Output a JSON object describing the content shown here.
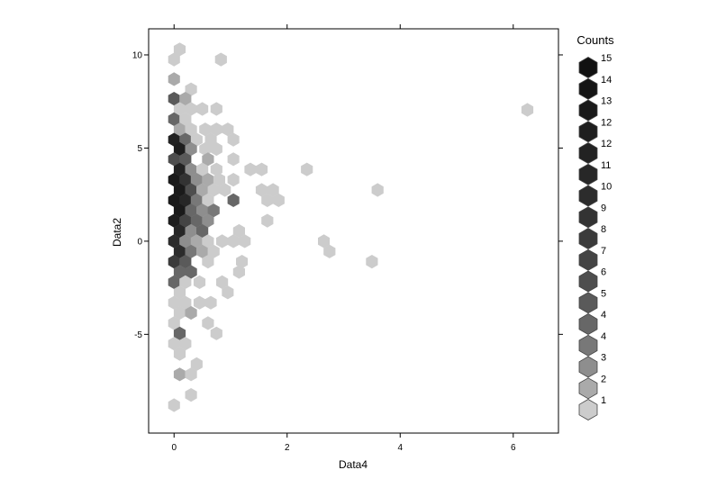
{
  "chart_data": {
    "type": "hexbin",
    "xlabel": "Data4",
    "ylabel": "Data2",
    "xlim": [
      -0.45,
      6.8
    ],
    "ylim": [
      -10.3,
      11.4
    ],
    "xticks": [
      0,
      2,
      4,
      6
    ],
    "yticks": [
      -5,
      0,
      5,
      10
    ],
    "legend": {
      "title": "Counts",
      "position": "right",
      "labels": [
        "15",
        "14",
        "13",
        "12",
        "12",
        "11",
        "10",
        "9",
        "8",
        "7",
        "6",
        "5",
        "4",
        "4",
        "3",
        "2",
        "1"
      ],
      "colors": [
        "#111111",
        "#151515",
        "#1a1a1a",
        "#1e1e1e",
        "#222222",
        "#272727",
        "#2c2c2c",
        "#333333",
        "#3b3b3b",
        "#444444",
        "#4e4e4e",
        "#5a5a5a",
        "#676767",
        "#787878",
        "#8e8e8e",
        "#aaaaaa",
        "#cccccc"
      ]
    },
    "hex_cells": [
      {
        "x": 0.1,
        "y": 10.3,
        "count": 1
      },
      {
        "x": 0.0,
        "y": 9.75,
        "count": 1
      },
      {
        "x": 0.83,
        "y": 9.75,
        "count": 1
      },
      {
        "x": 0.0,
        "y": 8.7,
        "count": 2
      },
      {
        "x": 0.3,
        "y": 8.15,
        "count": 1
      },
      {
        "x": 0.0,
        "y": 7.65,
        "count": 6
      },
      {
        "x": 0.2,
        "y": 7.65,
        "count": 2
      },
      {
        "x": 0.1,
        "y": 7.1,
        "count": 1
      },
      {
        "x": 0.3,
        "y": 7.1,
        "count": 1
      },
      {
        "x": 0.5,
        "y": 7.1,
        "count": 1
      },
      {
        "x": 0.75,
        "y": 7.1,
        "count": 1
      },
      {
        "x": 0.0,
        "y": 6.55,
        "count": 5
      },
      {
        "x": 0.2,
        "y": 6.55,
        "count": 1
      },
      {
        "x": 0.1,
        "y": 6.0,
        "count": 2
      },
      {
        "x": 0.3,
        "y": 6.0,
        "count": 1
      },
      {
        "x": 0.55,
        "y": 6.0,
        "count": 1
      },
      {
        "x": 0.75,
        "y": 6.0,
        "count": 1
      },
      {
        "x": 0.95,
        "y": 6.0,
        "count": 1
      },
      {
        "x": 0.0,
        "y": 5.45,
        "count": 13
      },
      {
        "x": 0.2,
        "y": 5.45,
        "count": 5
      },
      {
        "x": 0.4,
        "y": 5.45,
        "count": 1
      },
      {
        "x": 0.65,
        "y": 5.45,
        "count": 1
      },
      {
        "x": 1.05,
        "y": 5.45,
        "count": 1
      },
      {
        "x": 0.1,
        "y": 4.95,
        "count": 14
      },
      {
        "x": 0.3,
        "y": 4.95,
        "count": 3
      },
      {
        "x": 0.55,
        "y": 4.95,
        "count": 1
      },
      {
        "x": 0.75,
        "y": 4.95,
        "count": 1
      },
      {
        "x": 0.0,
        "y": 4.4,
        "count": 7
      },
      {
        "x": 0.2,
        "y": 4.4,
        "count": 6
      },
      {
        "x": 0.6,
        "y": 4.4,
        "count": 2
      },
      {
        "x": 1.05,
        "y": 4.4,
        "count": 1
      },
      {
        "x": 0.1,
        "y": 3.85,
        "count": 13
      },
      {
        "x": 0.3,
        "y": 3.85,
        "count": 3
      },
      {
        "x": 0.5,
        "y": 3.85,
        "count": 1
      },
      {
        "x": 0.75,
        "y": 3.85,
        "count": 1
      },
      {
        "x": 1.35,
        "y": 3.85,
        "count": 1
      },
      {
        "x": 1.55,
        "y": 3.85,
        "count": 1
      },
      {
        "x": 2.35,
        "y": 3.85,
        "count": 1
      },
      {
        "x": 0.0,
        "y": 3.3,
        "count": 15
      },
      {
        "x": 0.2,
        "y": 3.3,
        "count": 10
      },
      {
        "x": 0.4,
        "y": 3.3,
        "count": 3
      },
      {
        "x": 0.6,
        "y": 3.3,
        "count": 2
      },
      {
        "x": 0.8,
        "y": 3.3,
        "count": 1
      },
      {
        "x": 1.05,
        "y": 3.3,
        "count": 1
      },
      {
        "x": 0.1,
        "y": 2.75,
        "count": 15
      },
      {
        "x": 0.3,
        "y": 2.75,
        "count": 7
      },
      {
        "x": 0.5,
        "y": 2.75,
        "count": 2
      },
      {
        "x": 0.7,
        "y": 2.75,
        "count": 1
      },
      {
        "x": 0.9,
        "y": 2.75,
        "count": 1
      },
      {
        "x": 1.55,
        "y": 2.75,
        "count": 1
      },
      {
        "x": 1.75,
        "y": 2.75,
        "count": 1
      },
      {
        "x": 3.6,
        "y": 2.75,
        "count": 1
      },
      {
        "x": 0.0,
        "y": 2.2,
        "count": 15
      },
      {
        "x": 0.2,
        "y": 2.2,
        "count": 12
      },
      {
        "x": 0.4,
        "y": 2.2,
        "count": 4
      },
      {
        "x": 0.6,
        "y": 2.2,
        "count": 1
      },
      {
        "x": 1.05,
        "y": 2.2,
        "count": 5
      },
      {
        "x": 1.65,
        "y": 2.2,
        "count": 1
      },
      {
        "x": 1.85,
        "y": 2.2,
        "count": 1
      },
      {
        "x": 0.1,
        "y": 1.65,
        "count": 15
      },
      {
        "x": 0.3,
        "y": 1.65,
        "count": 5
      },
      {
        "x": 0.5,
        "y": 1.65,
        "count": 3
      },
      {
        "x": 0.7,
        "y": 1.65,
        "count": 4
      },
      {
        "x": 0.0,
        "y": 1.1,
        "count": 14
      },
      {
        "x": 0.2,
        "y": 1.1,
        "count": 8
      },
      {
        "x": 0.4,
        "y": 1.1,
        "count": 5
      },
      {
        "x": 0.6,
        "y": 1.1,
        "count": 3
      },
      {
        "x": 1.65,
        "y": 1.1,
        "count": 1
      },
      {
        "x": 0.1,
        "y": 0.55,
        "count": 12
      },
      {
        "x": 0.3,
        "y": 0.55,
        "count": 3
      },
      {
        "x": 0.5,
        "y": 0.55,
        "count": 5
      },
      {
        "x": 1.15,
        "y": 0.55,
        "count": 1
      },
      {
        "x": 0.0,
        "y": 0.0,
        "count": 11
      },
      {
        "x": 0.2,
        "y": 0.0,
        "count": 3
      },
      {
        "x": 0.4,
        "y": 0.0,
        "count": 2
      },
      {
        "x": 0.6,
        "y": 0.0,
        "count": 1
      },
      {
        "x": 0.85,
        "y": 0.0,
        "count": 1
      },
      {
        "x": 1.05,
        "y": 0.0,
        "count": 1
      },
      {
        "x": 1.25,
        "y": 0.0,
        "count": 1
      },
      {
        "x": 2.65,
        "y": 0.0,
        "count": 1
      },
      {
        "x": 0.1,
        "y": -0.55,
        "count": 11
      },
      {
        "x": 0.3,
        "y": -0.55,
        "count": 4
      },
      {
        "x": 0.5,
        "y": -0.55,
        "count": 2
      },
      {
        "x": 0.7,
        "y": -0.55,
        "count": 1
      },
      {
        "x": 2.75,
        "y": -0.55,
        "count": 1
      },
      {
        "x": 0.0,
        "y": -1.1,
        "count": 9
      },
      {
        "x": 0.2,
        "y": -1.1,
        "count": 6
      },
      {
        "x": 0.6,
        "y": -1.1,
        "count": 1
      },
      {
        "x": 1.2,
        "y": -1.1,
        "count": 1
      },
      {
        "x": 3.5,
        "y": -1.1,
        "count": 1
      },
      {
        "x": 0.1,
        "y": -1.65,
        "count": 5
      },
      {
        "x": 0.3,
        "y": -1.65,
        "count": 5
      },
      {
        "x": 1.15,
        "y": -1.65,
        "count": 1
      },
      {
        "x": 0.0,
        "y": -2.2,
        "count": 5
      },
      {
        "x": 0.2,
        "y": -2.2,
        "count": 1
      },
      {
        "x": 0.45,
        "y": -2.2,
        "count": 1
      },
      {
        "x": 0.85,
        "y": -2.2,
        "count": 1
      },
      {
        "x": 0.1,
        "y": -2.75,
        "count": 1
      },
      {
        "x": 0.95,
        "y": -2.75,
        "count": 1
      },
      {
        "x": 0.0,
        "y": -3.3,
        "count": 1
      },
      {
        "x": 0.2,
        "y": -3.3,
        "count": 1
      },
      {
        "x": 0.45,
        "y": -3.3,
        "count": 1
      },
      {
        "x": 0.65,
        "y": -3.3,
        "count": 1
      },
      {
        "x": 0.1,
        "y": -3.85,
        "count": 1
      },
      {
        "x": 0.3,
        "y": -3.85,
        "count": 2
      },
      {
        "x": 0.0,
        "y": -4.4,
        "count": 1
      },
      {
        "x": 0.6,
        "y": -4.4,
        "count": 1
      },
      {
        "x": 0.1,
        "y": -4.95,
        "count": 5
      },
      {
        "x": 0.75,
        "y": -4.95,
        "count": 1
      },
      {
        "x": 0.0,
        "y": -5.5,
        "count": 1
      },
      {
        "x": 0.2,
        "y": -5.5,
        "count": 1
      },
      {
        "x": 0.1,
        "y": -6.05,
        "count": 1
      },
      {
        "x": 0.4,
        "y": -6.6,
        "count": 1
      },
      {
        "x": 0.1,
        "y": -7.15,
        "count": 2
      },
      {
        "x": 0.3,
        "y": -7.15,
        "count": 1
      },
      {
        "x": 0.3,
        "y": -8.25,
        "count": 1
      },
      {
        "x": 0.0,
        "y": -8.8,
        "count": 1
      },
      {
        "x": 6.25,
        "y": 7.05,
        "count": 1
      }
    ]
  }
}
